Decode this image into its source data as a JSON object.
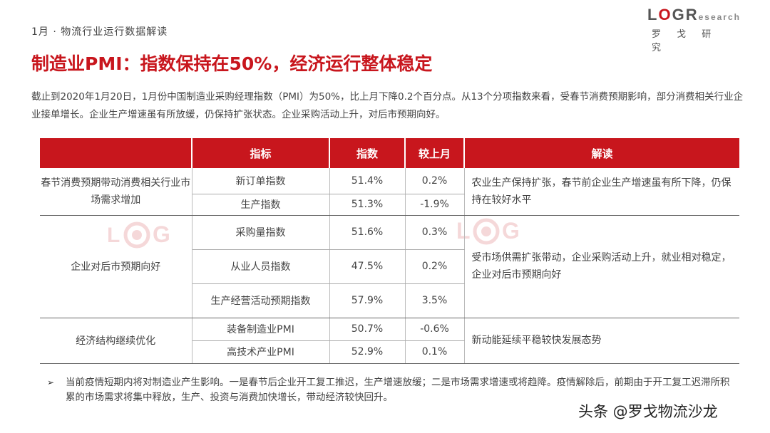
{
  "header": {
    "breadcrumb": "1月 · 物流行业运行数据解读",
    "logo": {
      "mark_l": "L",
      "mark_o": "O",
      "mark_g": "G",
      "mark_r": "R",
      "research": "esearch",
      "cn": "罗 戈 研 究"
    }
  },
  "title": "制造业PMI：指数保持在50%，经济运行整体稳定",
  "intro": "截止到2020年1月20日，1月份中国制造业采购经理指数（PMI）为50%，比上月下降0.2个百分点。从13个分项指数来看，受春节消费预期影响，部分消费相关行业企业接单增长。企业生产增速虽有所放缓，仍保持扩张状态。企业采购活动上升，对后市预期向好。",
  "table": {
    "headers": [
      "",
      "指标",
      "指数",
      "较上月",
      "解读"
    ],
    "groups": [
      {
        "category": "春节消费预期带动消费相关行业市场需求增加",
        "reading": "农业生产保持扩张，春节前企业生产增速虽有所下降，仍保持在较好水平",
        "rows": [
          {
            "indicator": "新订单指数",
            "value": "51.4%",
            "change": "0.2%"
          },
          {
            "indicator": "生产指数",
            "value": "51.3%",
            "change": "-1.9%"
          }
        ]
      },
      {
        "category": "企业对后市预期向好",
        "reading": "受市场供需扩张带动，企业采购活动上升，就业相对稳定，企业对后市预期向好",
        "rows": [
          {
            "indicator": "采购量指数",
            "value": "51.6%",
            "change": "0.3%"
          },
          {
            "indicator": "从业人员指数",
            "value": "47.5%",
            "change": "0.2%"
          },
          {
            "indicator": "生产经营活动预期指数",
            "value": "57.9%",
            "change": "3.5%"
          }
        ]
      },
      {
        "category": "经济结构继续优化",
        "reading": "新动能延续平稳较快发展态势",
        "rows": [
          {
            "indicator": "装备制造业PMI",
            "value": "50.7%",
            "change": "-0.6%"
          },
          {
            "indicator": "高技术产业PMI",
            "value": "52.9%",
            "change": "0.1%"
          }
        ]
      }
    ]
  },
  "note": {
    "bullet": "➢",
    "text": "当前疫情短期内将对制造业产生影响。一是春节后企业开工复工推迟，生产增速放缓；二是市场需求增速或将趋降。疫情解除后，前期由于开工复工迟滞所积累的市场需求将集中释放，生产、投资与消费加快增长，带动经济较快回升。"
  },
  "footer_tag": "头条 @罗戈物流沙龙",
  "colors": {
    "accent": "#c8161d",
    "text": "#444444"
  }
}
